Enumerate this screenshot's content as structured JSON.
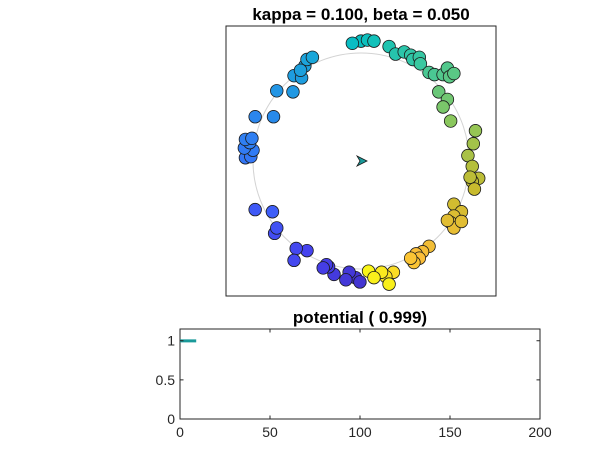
{
  "chart_data": [
    {
      "type": "scatter",
      "title": "kappa = 0.100, beta = 0.050",
      "xlim": [
        -1.25,
        1.25
      ],
      "ylim": [
        -1.25,
        1.25
      ],
      "axis_ticks": "none",
      "grid": false,
      "reference_circle": {
        "center": [
          0,
          0
        ],
        "radius": 1.0,
        "color": "#d3d3d3"
      },
      "heading_marker": {
        "x": 0.0,
        "y": 0.0,
        "direction_deg": 0,
        "color": "#1a9a9a"
      },
      "colormap": "parula",
      "color_variable": "hue phase (0 = blue, 1 = yellow)",
      "points": [
        {
          "x": 0.0,
          "y": 1.11,
          "c": 0.5
        },
        {
          "x": 0.06,
          "y": 1.12,
          "c": 0.51
        },
        {
          "x": -0.08,
          "y": 1.09,
          "c": 0.49
        },
        {
          "x": 0.12,
          "y": 1.11,
          "c": 0.52
        },
        {
          "x": 0.26,
          "y": 1.06,
          "c": 0.55
        },
        {
          "x": 0.32,
          "y": 0.99,
          "c": 0.56
        },
        {
          "x": 0.4,
          "y": 1.01,
          "c": 0.57
        },
        {
          "x": 0.46,
          "y": 0.98,
          "c": 0.58
        },
        {
          "x": 0.48,
          "y": 0.94,
          "c": 0.58
        },
        {
          "x": 0.54,
          "y": 0.96,
          "c": 0.59
        },
        {
          "x": 0.55,
          "y": 0.9,
          "c": 0.6
        },
        {
          "x": 0.63,
          "y": 0.82,
          "c": 0.62
        },
        {
          "x": 0.68,
          "y": 0.8,
          "c": 0.62
        },
        {
          "x": 0.76,
          "y": 0.8,
          "c": 0.63
        },
        {
          "x": 0.8,
          "y": 0.86,
          "c": 0.63
        },
        {
          "x": 0.82,
          "y": 0.78,
          "c": 0.64
        },
        {
          "x": 0.86,
          "y": 0.81,
          "c": 0.64
        },
        {
          "x": 0.72,
          "y": 0.64,
          "c": 0.66
        },
        {
          "x": 0.8,
          "y": 0.57,
          "c": 0.67
        },
        {
          "x": 0.76,
          "y": 0.5,
          "c": 0.68
        },
        {
          "x": 0.83,
          "y": 0.37,
          "c": 0.7
        },
        {
          "x": 1.06,
          "y": 0.28,
          "c": 0.72
        },
        {
          "x": 1.04,
          "y": 0.16,
          "c": 0.74
        },
        {
          "x": 0.99,
          "y": 0.05,
          "c": 0.75
        },
        {
          "x": 1.03,
          "y": -0.05,
          "c": 0.77
        },
        {
          "x": 1.09,
          "y": -0.16,
          "c": 0.78
        },
        {
          "x": 1.03,
          "y": -0.19,
          "c": 0.79
        },
        {
          "x": 1.05,
          "y": -0.26,
          "c": 0.8
        },
        {
          "x": 1.01,
          "y": -0.15,
          "c": 0.78
        },
        {
          "x": 0.86,
          "y": -0.4,
          "c": 0.82
        },
        {
          "x": 0.93,
          "y": -0.47,
          "c": 0.83
        },
        {
          "x": 0.86,
          "y": -0.51,
          "c": 0.84
        },
        {
          "x": 0.83,
          "y": -0.57,
          "c": 0.85
        },
        {
          "x": 0.86,
          "y": -0.62,
          "c": 0.86
        },
        {
          "x": 0.93,
          "y": -0.56,
          "c": 0.85
        },
        {
          "x": 0.8,
          "y": -0.55,
          "c": 0.85
        },
        {
          "x": 0.63,
          "y": -0.79,
          "c": 0.88
        },
        {
          "x": 0.57,
          "y": -0.84,
          "c": 0.89
        },
        {
          "x": 0.51,
          "y": -0.86,
          "c": 0.9
        },
        {
          "x": 0.54,
          "y": -0.9,
          "c": 0.9
        },
        {
          "x": 0.49,
          "y": -0.94,
          "c": 0.91
        },
        {
          "x": 0.46,
          "y": -0.9,
          "c": 0.91
        },
        {
          "x": 0.3,
          "y": -1.03,
          "c": 0.95
        },
        {
          "x": 0.23,
          "y": -1.07,
          "c": 0.96
        },
        {
          "x": 0.19,
          "y": -1.03,
          "c": 0.97
        },
        {
          "x": 0.26,
          "y": -1.14,
          "c": 0.98
        },
        {
          "x": 0.07,
          "y": -1.02,
          "c": 0.99
        },
        {
          "x": 0.12,
          "y": -1.08,
          "c": 0.98
        },
        {
          "x": -0.05,
          "y": -1.08,
          "c": 0.06
        },
        {
          "x": -0.11,
          "y": -1.03,
          "c": 0.07
        },
        {
          "x": -0.14,
          "y": -1.1,
          "c": 0.07
        },
        {
          "x": -0.01,
          "y": -1.12,
          "c": 0.06
        },
        {
          "x": -0.25,
          "y": -1.05,
          "c": 0.08
        },
        {
          "x": -0.3,
          "y": -0.98,
          "c": 0.09
        },
        {
          "x": -0.32,
          "y": -0.96,
          "c": 0.09
        },
        {
          "x": -0.35,
          "y": -0.99,
          "c": 0.09
        },
        {
          "x": -0.5,
          "y": -0.83,
          "c": 0.11
        },
        {
          "x": -0.6,
          "y": -0.81,
          "c": 0.12
        },
        {
          "x": -0.62,
          "y": -0.92,
          "c": 0.12
        },
        {
          "x": -0.8,
          "y": -0.67,
          "c": 0.13
        },
        {
          "x": -0.78,
          "y": -0.62,
          "c": 0.14
        },
        {
          "x": -0.98,
          "y": -0.45,
          "c": 0.16
        },
        {
          "x": -0.82,
          "y": -0.47,
          "c": 0.17
        },
        {
          "x": -1.07,
          "y": 0.03,
          "c": 0.23
        },
        {
          "x": -1.02,
          "y": 0.04,
          "c": 0.23
        },
        {
          "x": -1.0,
          "y": 0.1,
          "c": 0.24
        },
        {
          "x": -1.08,
          "y": 0.12,
          "c": 0.24
        },
        {
          "x": -1.03,
          "y": 0.17,
          "c": 0.25
        },
        {
          "x": -1.07,
          "y": 0.2,
          "c": 0.25
        },
        {
          "x": -1.01,
          "y": 0.21,
          "c": 0.25
        },
        {
          "x": -0.98,
          "y": 0.41,
          "c": 0.27
        },
        {
          "x": -0.81,
          "y": 0.41,
          "c": 0.28
        },
        {
          "x": -0.78,
          "y": 0.65,
          "c": 0.31
        },
        {
          "x": -0.63,
          "y": 0.64,
          "c": 0.32
        },
        {
          "x": -0.62,
          "y": 0.79,
          "c": 0.34
        },
        {
          "x": -0.55,
          "y": 0.77,
          "c": 0.34
        },
        {
          "x": -0.52,
          "y": 0.88,
          "c": 0.35
        },
        {
          "x": -0.5,
          "y": 0.94,
          "c": 0.36
        },
        {
          "x": -0.56,
          "y": 0.84,
          "c": 0.35
        },
        {
          "x": -0.45,
          "y": 0.96,
          "c": 0.37
        }
      ]
    },
    {
      "type": "line",
      "title": "potential ( 0.999)",
      "xlim": [
        0,
        200
      ],
      "ylim": [
        0,
        1.15
      ],
      "xticks": [
        0,
        50,
        100,
        150,
        200
      ],
      "yticks": [
        0,
        0.5,
        1
      ],
      "xtick_labels": [
        "0",
        "50",
        "100",
        "150",
        "200"
      ],
      "ytick_labels": [
        "0",
        "0.5",
        "1"
      ],
      "grid": false,
      "series": [
        {
          "color": "#1a9a9a",
          "x": [
            0,
            1,
            2,
            3,
            4,
            5,
            6,
            7,
            8,
            9
          ],
          "y": [
            1.0,
            0.999,
            0.999,
            0.999,
            0.999,
            0.999,
            0.999,
            0.999,
            0.999,
            0.999
          ]
        }
      ]
    }
  ]
}
